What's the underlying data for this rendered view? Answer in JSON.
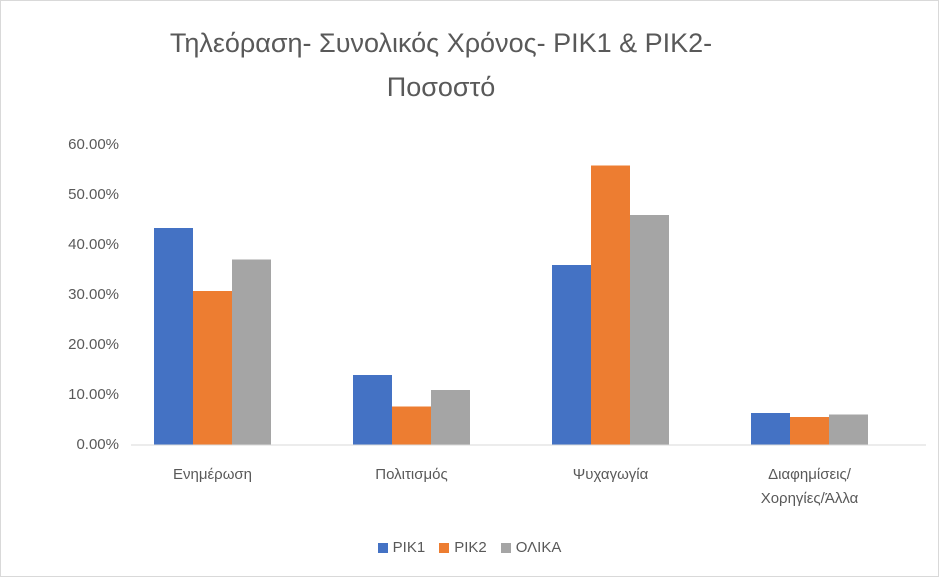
{
  "chart_data": {
    "type": "bar",
    "title": "Τηλεόραση- Συνολικός Χρόνος- ΡΙΚ1 & ΡΙΚ2- Ποσοστό",
    "categories": [
      "Ενημέρωση",
      "Πολιτισμός",
      "Ψυχαγωγία",
      "Διαφημίσεις/ Χορηγίες/Άλλα"
    ],
    "series": [
      {
        "name": "ΡΙΚ1",
        "color": "#4472c4",
        "values": [
          43.4,
          14.0,
          36.0,
          6.4
        ]
      },
      {
        "name": "ΡΙΚ2",
        "color": "#ed7d31",
        "values": [
          30.8,
          7.7,
          55.9,
          5.6
        ]
      },
      {
        "name": "ΟΛΙΚΑ",
        "color": "#a5a5a5",
        "values": [
          37.1,
          11.0,
          46.0,
          6.1
        ]
      }
    ],
    "ylim": [
      0,
      60
    ],
    "yticks": [
      {
        "value": 0,
        "label": "0.00%"
      },
      {
        "value": 10,
        "label": "10.00%"
      },
      {
        "value": 20,
        "label": "20.00%"
      },
      {
        "value": 30,
        "label": "30.00%"
      },
      {
        "value": 40,
        "label": "40.00%"
      },
      {
        "value": 50,
        "label": "50.00%"
      },
      {
        "value": 60,
        "label": "60.00%"
      }
    ],
    "grid": false,
    "legend": "bottom"
  }
}
